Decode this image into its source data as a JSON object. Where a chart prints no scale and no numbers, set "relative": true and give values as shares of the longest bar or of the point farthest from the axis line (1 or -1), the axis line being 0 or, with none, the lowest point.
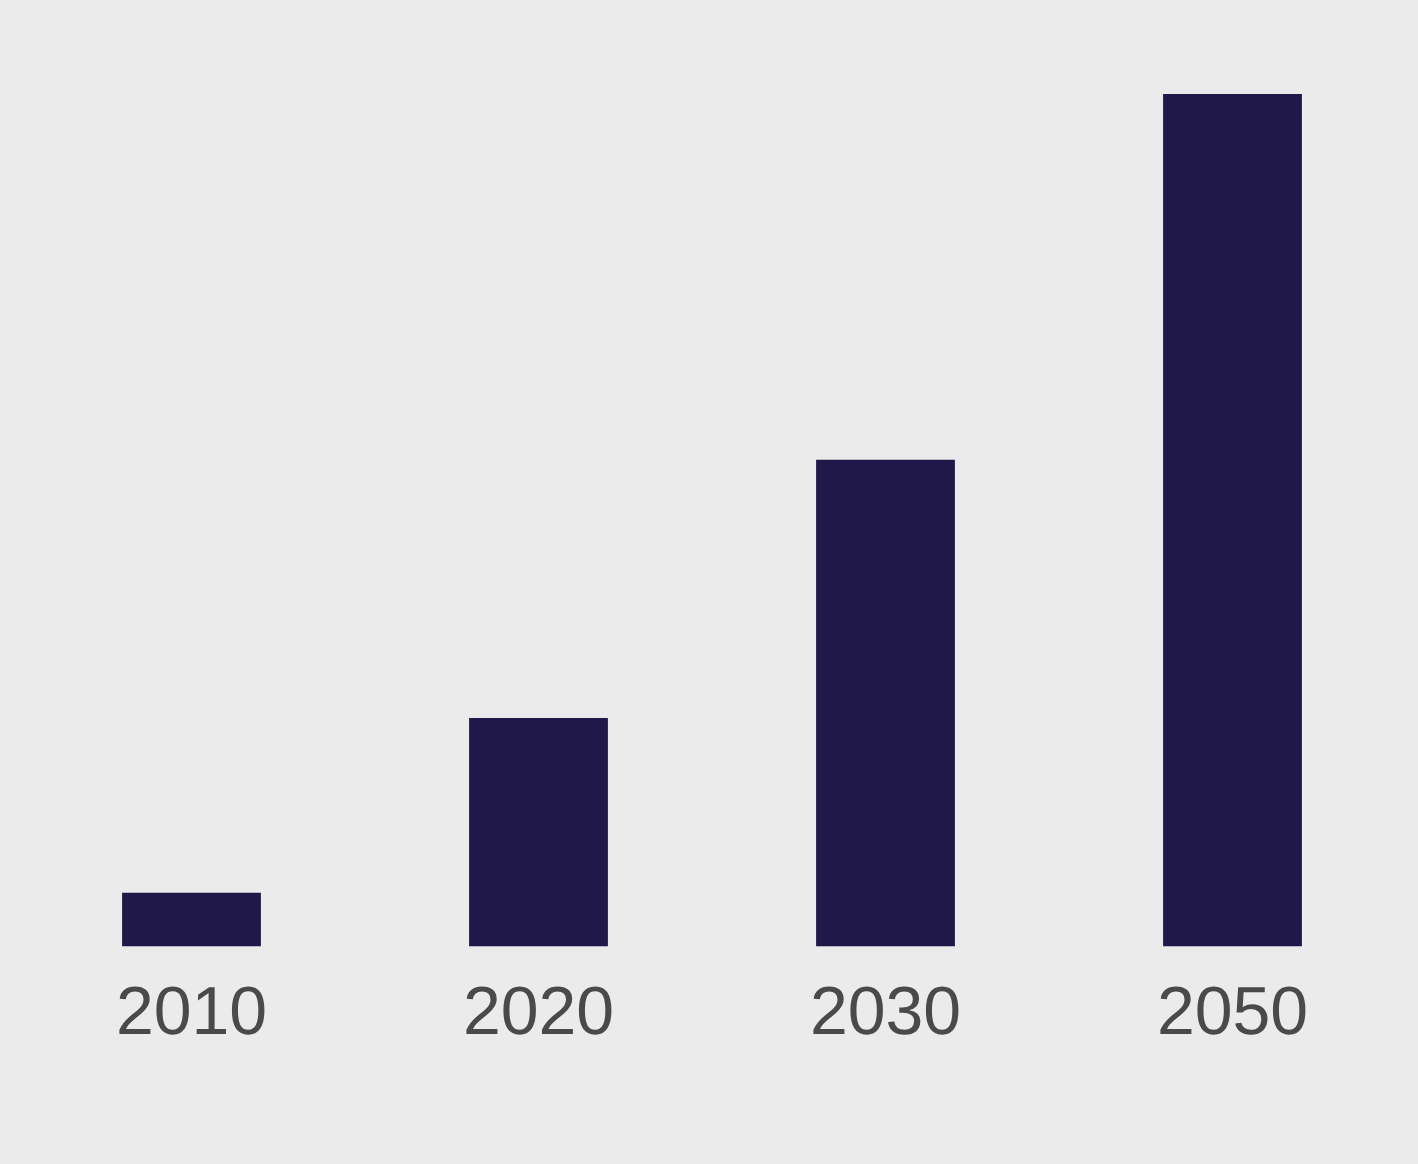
{
  "chart_data": {
    "type": "bar",
    "categories": [
      "2010",
      "2020",
      "2030",
      "2050"
    ],
    "values": [
      0.063,
      0.268,
      0.571,
      1
    ],
    "color": "#1f1848",
    "relative": true,
    "grid": false,
    "legend": false
  }
}
